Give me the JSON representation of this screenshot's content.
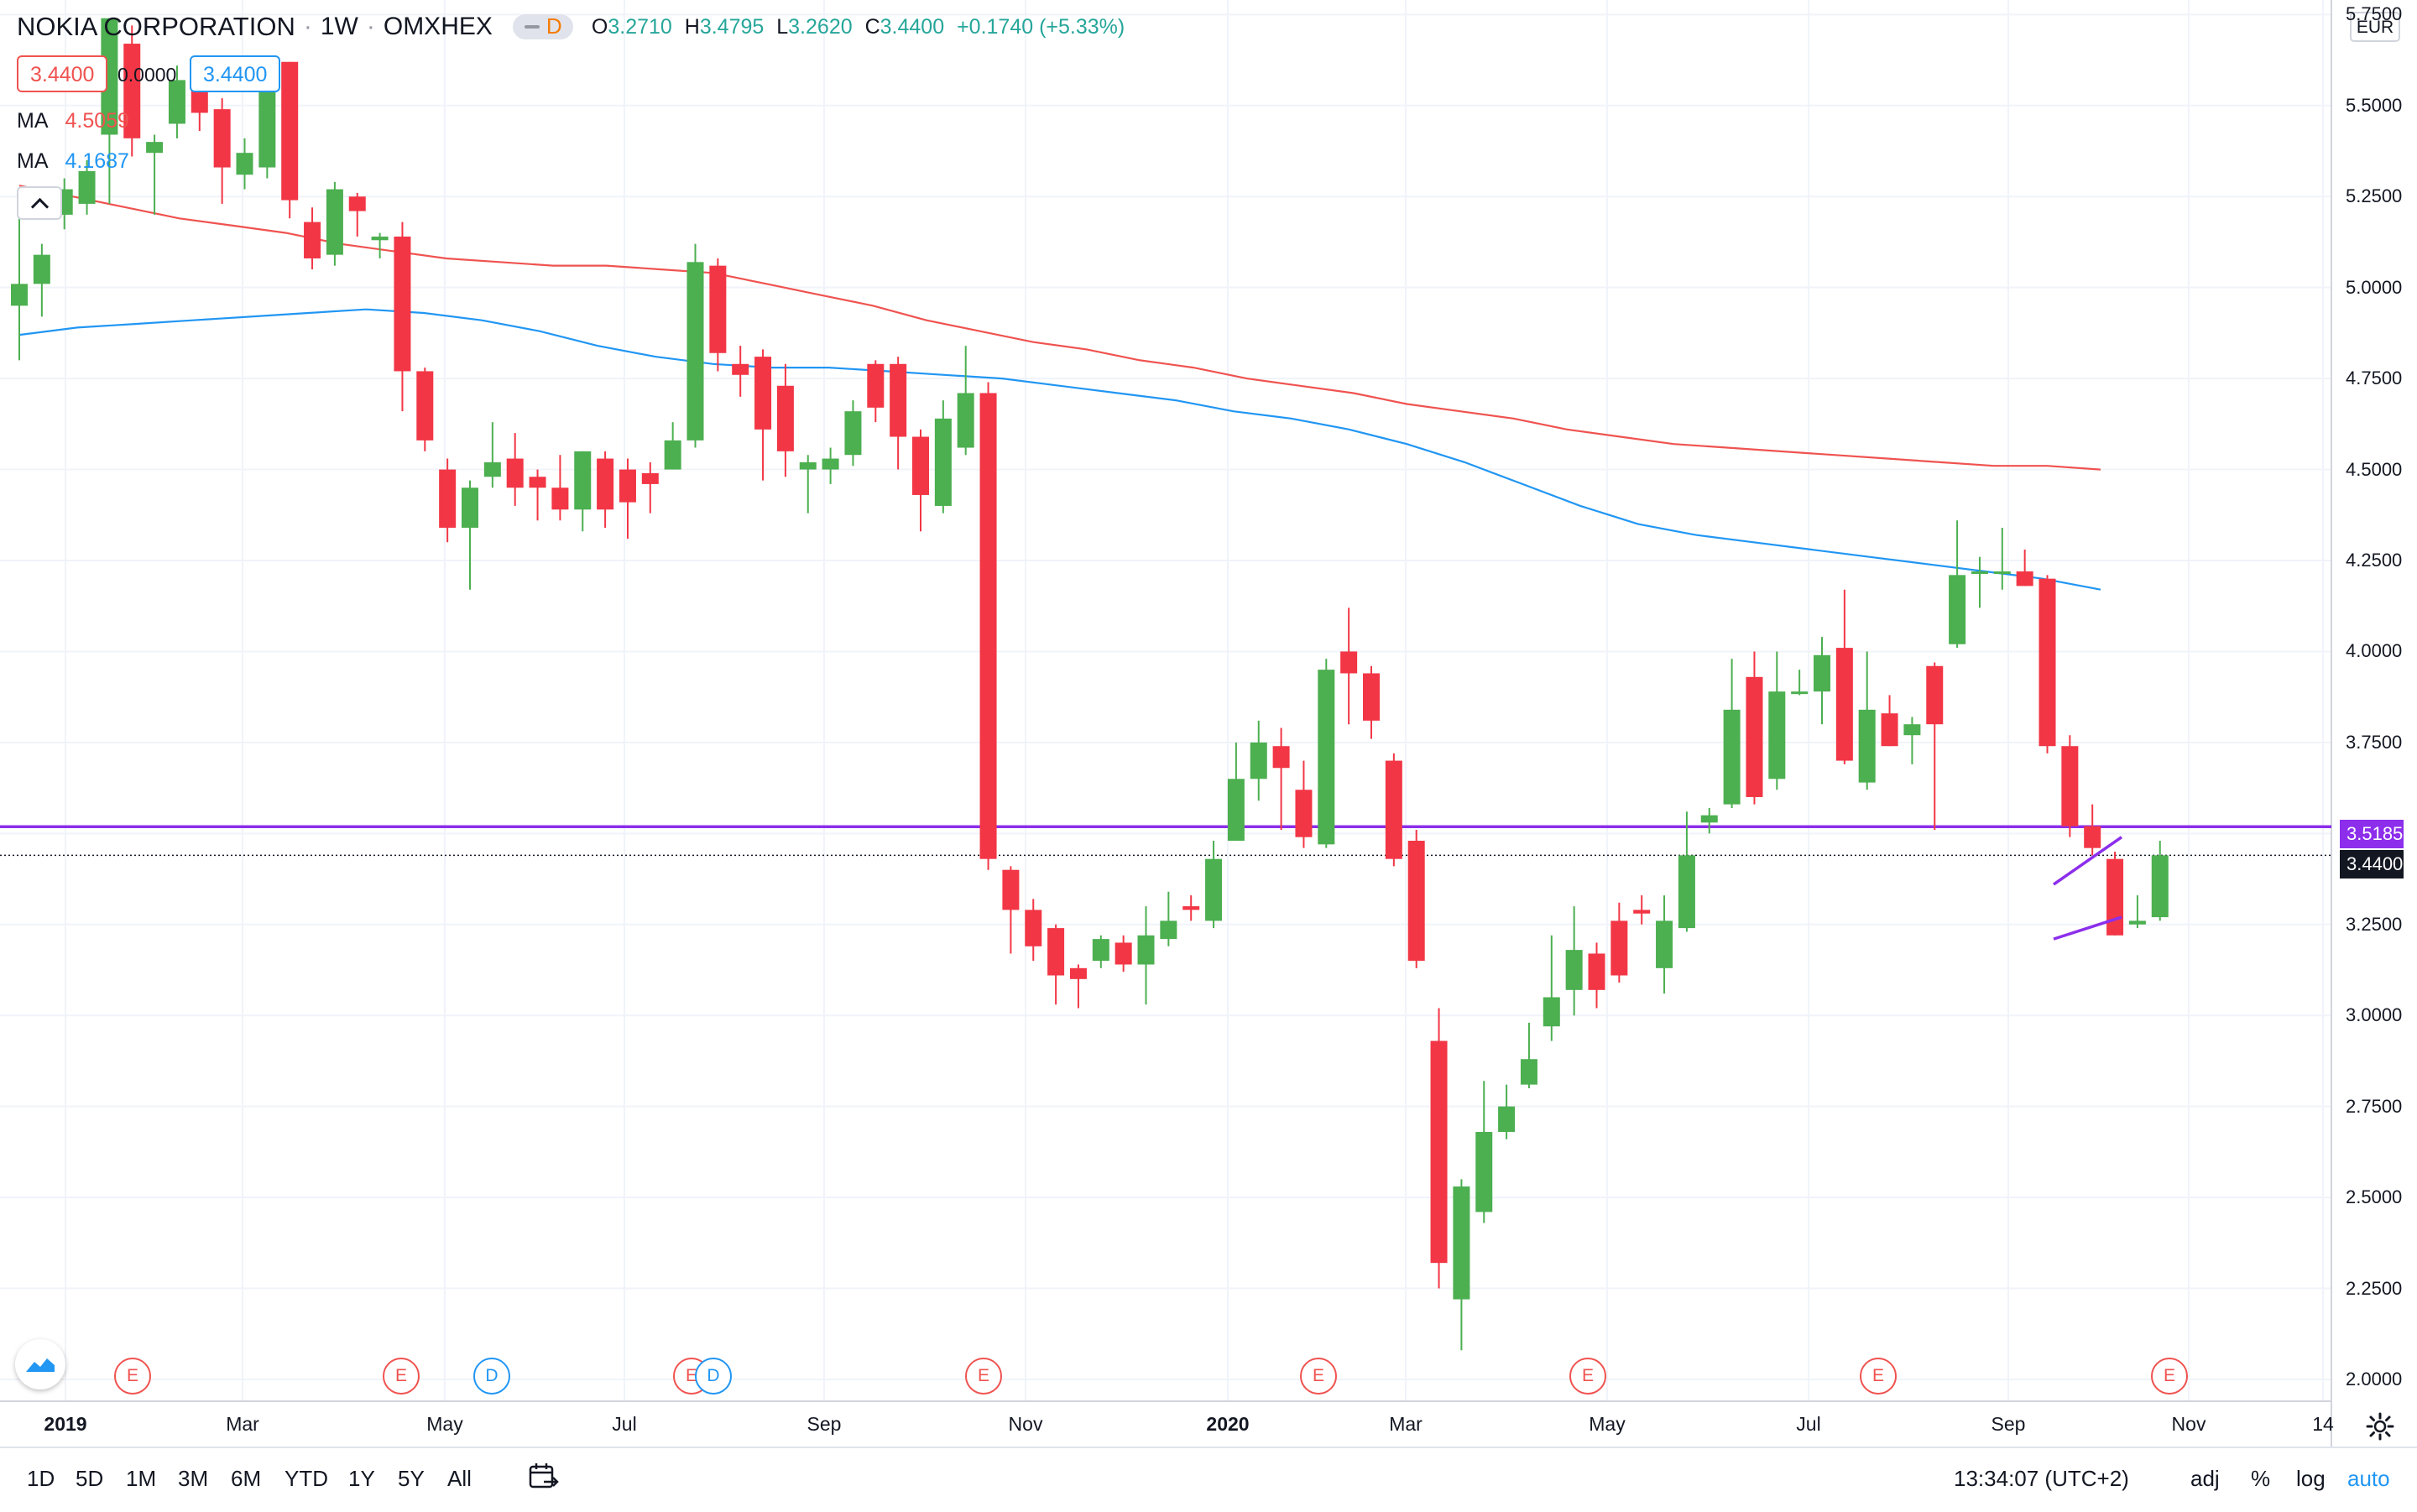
{
  "header": {
    "symbol": "NOKIA CORPORATION",
    "interval": "1W",
    "exchange": "OMXHEX",
    "pill_letter": "D",
    "open_label": "O",
    "open": "3.2710",
    "high_label": "H",
    "high": "3.4795",
    "low_label": "L",
    "low": "3.2620",
    "close_label": "C",
    "close": "3.4400",
    "change": "+0.1740 (+5.33%)",
    "bid": "3.4400",
    "spread": "0.0000",
    "ask": "3.4400"
  },
  "indicators": [
    {
      "name": "MA",
      "value": "4.5059",
      "color": "#ef5350"
    },
    {
      "name": "MA",
      "value": "4.1687",
      "color": "#2196f3"
    }
  ],
  "currency": "EUR",
  "price_axis": [
    "5.7500",
    "5.5000",
    "5.2500",
    "5.0000",
    "4.7500",
    "4.5000",
    "4.2500",
    "4.0000",
    "3.7500",
    "3.5000",
    "3.2500",
    "3.0000",
    "2.7500",
    "2.5000",
    "2.2500",
    "2.0000"
  ],
  "price_labels": {
    "horizontal_line": "3.5185",
    "last_price": "3.4400"
  },
  "time_axis": [
    {
      "label": "2019",
      "bold": true
    },
    {
      "label": "Mar",
      "bold": false
    },
    {
      "label": "May",
      "bold": false
    },
    {
      "label": "Jul",
      "bold": false
    },
    {
      "label": "Sep",
      "bold": false
    },
    {
      "label": "Nov",
      "bold": false
    },
    {
      "label": "2020",
      "bold": true
    },
    {
      "label": "Mar",
      "bold": false
    },
    {
      "label": "May",
      "bold": false
    },
    {
      "label": "Jul",
      "bold": false
    },
    {
      "label": "Sep",
      "bold": false
    },
    {
      "label": "Nov",
      "bold": false
    },
    {
      "label": "14",
      "bold": false
    }
  ],
  "events": [
    {
      "type": "earnings",
      "label": "E"
    },
    {
      "type": "earnings",
      "label": "E"
    },
    {
      "type": "dividend",
      "label": "D"
    },
    {
      "type": "earnings",
      "label": "E"
    },
    {
      "type": "dividend",
      "label": "D"
    },
    {
      "type": "earnings",
      "label": "E"
    },
    {
      "type": "earnings",
      "label": "E"
    },
    {
      "type": "earnings",
      "label": "E"
    },
    {
      "type": "earnings",
      "label": "E"
    },
    {
      "type": "earnings",
      "label": "E"
    }
  ],
  "bottom_bar": {
    "ranges": [
      "1D",
      "5D",
      "1M",
      "3M",
      "6M",
      "YTD",
      "1Y",
      "5Y",
      "All"
    ],
    "clock": "13:34:07 (UTC+2)",
    "options": [
      "adj",
      "%",
      "log",
      "auto"
    ]
  },
  "colors": {
    "up": "#4caf50",
    "down": "#f23645",
    "ma_slow": "#ef5350",
    "ma_fast": "#2196f3",
    "horizontal_line": "#8c2eeb",
    "channel": "#8c2eeb"
  },
  "chart_data": {
    "type": "candlestick",
    "ylim": [
      1.94,
      5.79
    ],
    "horizontal_line": 3.5185,
    "last_price": 3.44,
    "channel": {
      "upper": [
        3.36,
        3.49
      ],
      "lower": [
        3.21,
        3.27
      ]
    },
    "ma_slow": [
      5.28,
      5.25,
      5.22,
      5.19,
      5.17,
      5.15,
      5.12,
      5.1,
      5.08,
      5.07,
      5.06,
      5.06,
      5.05,
      5.04,
      5.01,
      4.98,
      4.95,
      4.91,
      4.88,
      4.85,
      4.83,
      4.8,
      4.78,
      4.75,
      4.73,
      4.71,
      4.68,
      4.66,
      4.64,
      4.61,
      4.59,
      4.57,
      4.56,
      4.55,
      4.54,
      4.53,
      4.52,
      4.51,
      4.51,
      4.5
    ],
    "ma_fast": [
      4.87,
      4.89,
      4.9,
      4.91,
      4.92,
      4.93,
      4.94,
      4.93,
      4.91,
      4.88,
      4.84,
      4.81,
      4.79,
      4.78,
      4.78,
      4.77,
      4.76,
      4.75,
      4.73,
      4.71,
      4.69,
      4.66,
      4.64,
      4.61,
      4.57,
      4.52,
      4.46,
      4.4,
      4.35,
      4.32,
      4.3,
      4.28,
      4.26,
      4.24,
      4.22,
      4.2,
      4.17
    ],
    "candles": [
      [
        4.95,
        5.01,
        4.8,
        5.2
      ],
      [
        5.01,
        5.09,
        4.92,
        5.12
      ],
      [
        5.2,
        5.27,
        5.16,
        5.3
      ],
      [
        5.23,
        5.32,
        5.2,
        5.35
      ],
      [
        5.42,
        5.74,
        5.23,
        5.74
      ],
      [
        5.67,
        5.41,
        5.36,
        5.72
      ],
      [
        5.37,
        5.4,
        5.2,
        5.42
      ],
      [
        5.45,
        5.57,
        5.41,
        5.61
      ],
      [
        5.58,
        5.48,
        5.43,
        5.6
      ],
      [
        5.49,
        5.33,
        5.23,
        5.52
      ],
      [
        5.31,
        5.37,
        5.27,
        5.41
      ],
      [
        5.33,
        5.62,
        5.3,
        5.62
      ],
      [
        5.62,
        5.24,
        5.19,
        5.62
      ],
      [
        5.18,
        5.08,
        5.05,
        5.22
      ],
      [
        5.09,
        5.27,
        5.06,
        5.29
      ],
      [
        5.25,
        5.21,
        5.14,
        5.26
      ],
      [
        5.13,
        5.14,
        5.08,
        5.15
      ],
      [
        5.14,
        4.77,
        4.66,
        5.18
      ],
      [
        4.77,
        4.58,
        4.55,
        4.78
      ],
      [
        4.5,
        4.34,
        4.3,
        4.53
      ],
      [
        4.34,
        4.45,
        4.17,
        4.47
      ],
      [
        4.48,
        4.52,
        4.45,
        4.63
      ],
      [
        4.53,
        4.45,
        4.4,
        4.6
      ],
      [
        4.48,
        4.45,
        4.36,
        4.5
      ],
      [
        4.45,
        4.39,
        4.36,
        4.54
      ],
      [
        4.39,
        4.55,
        4.33,
        4.55
      ],
      [
        4.53,
        4.39,
        4.34,
        4.55
      ],
      [
        4.5,
        4.41,
        4.31,
        4.53
      ],
      [
        4.49,
        4.46,
        4.38,
        4.52
      ],
      [
        4.5,
        4.58,
        4.5,
        4.63
      ],
      [
        4.58,
        5.07,
        4.56,
        5.12
      ],
      [
        5.06,
        4.82,
        4.77,
        5.08
      ],
      [
        4.79,
        4.76,
        4.7,
        4.84
      ],
      [
        4.81,
        4.61,
        4.47,
        4.83
      ],
      [
        4.73,
        4.55,
        4.48,
        4.79
      ],
      [
        4.5,
        4.52,
        4.38,
        4.54
      ],
      [
        4.5,
        4.53,
        4.46,
        4.56
      ],
      [
        4.54,
        4.66,
        4.51,
        4.69
      ],
      [
        4.79,
        4.67,
        4.63,
        4.8
      ],
      [
        4.79,
        4.59,
        4.5,
        4.81
      ],
      [
        4.59,
        4.43,
        4.33,
        4.61
      ],
      [
        4.4,
        4.64,
        4.38,
        4.69
      ],
      [
        4.56,
        4.71,
        4.54,
        4.84
      ],
      [
        4.71,
        3.43,
        3.4,
        4.74
      ],
      [
        3.4,
        3.29,
        3.17,
        3.41
      ],
      [
        3.29,
        3.19,
        3.15,
        3.32
      ],
      [
        3.24,
        3.11,
        3.03,
        3.25
      ],
      [
        3.13,
        3.1,
        3.02,
        3.14
      ],
      [
        3.15,
        3.21,
        3.13,
        3.22
      ],
      [
        3.2,
        3.14,
        3.12,
        3.22
      ],
      [
        3.14,
        3.22,
        3.03,
        3.3
      ],
      [
        3.21,
        3.26,
        3.19,
        3.34
      ],
      [
        3.3,
        3.29,
        3.26,
        3.33
      ],
      [
        3.26,
        3.43,
        3.24,
        3.48
      ],
      [
        3.48,
        3.65,
        3.49,
        3.75
      ],
      [
        3.65,
        3.75,
        3.59,
        3.81
      ],
      [
        3.74,
        3.68,
        3.51,
        3.79
      ],
      [
        3.62,
        3.49,
        3.46,
        3.7
      ],
      [
        3.47,
        3.95,
        3.46,
        3.98
      ],
      [
        4.0,
        3.94,
        3.8,
        4.12
      ],
      [
        3.94,
        3.81,
        3.76,
        3.96
      ],
      [
        3.7,
        3.43,
        3.41,
        3.72
      ],
      [
        3.48,
        3.15,
        3.13,
        3.51
      ],
      [
        2.93,
        2.32,
        2.25,
        3.02
      ],
      [
        2.22,
        2.53,
        2.08,
        2.55
      ],
      [
        2.46,
        2.68,
        2.43,
        2.82
      ],
      [
        2.68,
        2.75,
        2.66,
        2.81
      ],
      [
        2.81,
        2.88,
        2.8,
        2.98
      ],
      [
        2.97,
        3.05,
        2.93,
        3.22
      ],
      [
        3.07,
        3.18,
        3.0,
        3.3
      ],
      [
        3.17,
        3.07,
        3.02,
        3.2
      ],
      [
        3.26,
        3.11,
        3.09,
        3.31
      ],
      [
        3.29,
        3.28,
        3.25,
        3.33
      ],
      [
        3.13,
        3.26,
        3.06,
        3.33
      ],
      [
        3.24,
        3.44,
        3.23,
        3.56
      ],
      [
        3.53,
        3.55,
        3.5,
        3.57
      ],
      [
        3.58,
        3.84,
        3.57,
        3.98
      ],
      [
        3.93,
        3.6,
        3.58,
        4.0
      ],
      [
        3.65,
        3.89,
        3.62,
        4.0
      ],
      [
        3.89,
        3.89,
        3.88,
        3.95
      ],
      [
        3.89,
        3.99,
        3.8,
        4.04
      ],
      [
        4.01,
        3.7,
        3.69,
        4.17
      ],
      [
        3.64,
        3.84,
        3.62,
        4.0
      ],
      [
        3.83,
        3.74,
        3.74,
        3.88
      ],
      [
        3.77,
        3.8,
        3.69,
        3.82
      ],
      [
        3.96,
        3.8,
        3.51,
        3.97
      ],
      [
        4.02,
        4.21,
        4.01,
        4.36
      ],
      [
        4.22,
        4.22,
        4.12,
        4.26
      ],
      [
        4.22,
        4.22,
        4.17,
        4.34
      ],
      [
        4.22,
        4.18,
        4.18,
        4.28
      ],
      [
        4.2,
        3.74,
        3.72,
        4.21
      ],
      [
        3.74,
        3.52,
        3.49,
        3.77
      ],
      [
        3.52,
        3.46,
        3.44,
        3.58
      ],
      [
        3.43,
        3.22,
        3.22,
        3.45
      ],
      [
        3.25,
        3.26,
        3.24,
        3.33
      ],
      [
        3.27,
        3.44,
        3.26,
        3.48
      ]
    ]
  }
}
